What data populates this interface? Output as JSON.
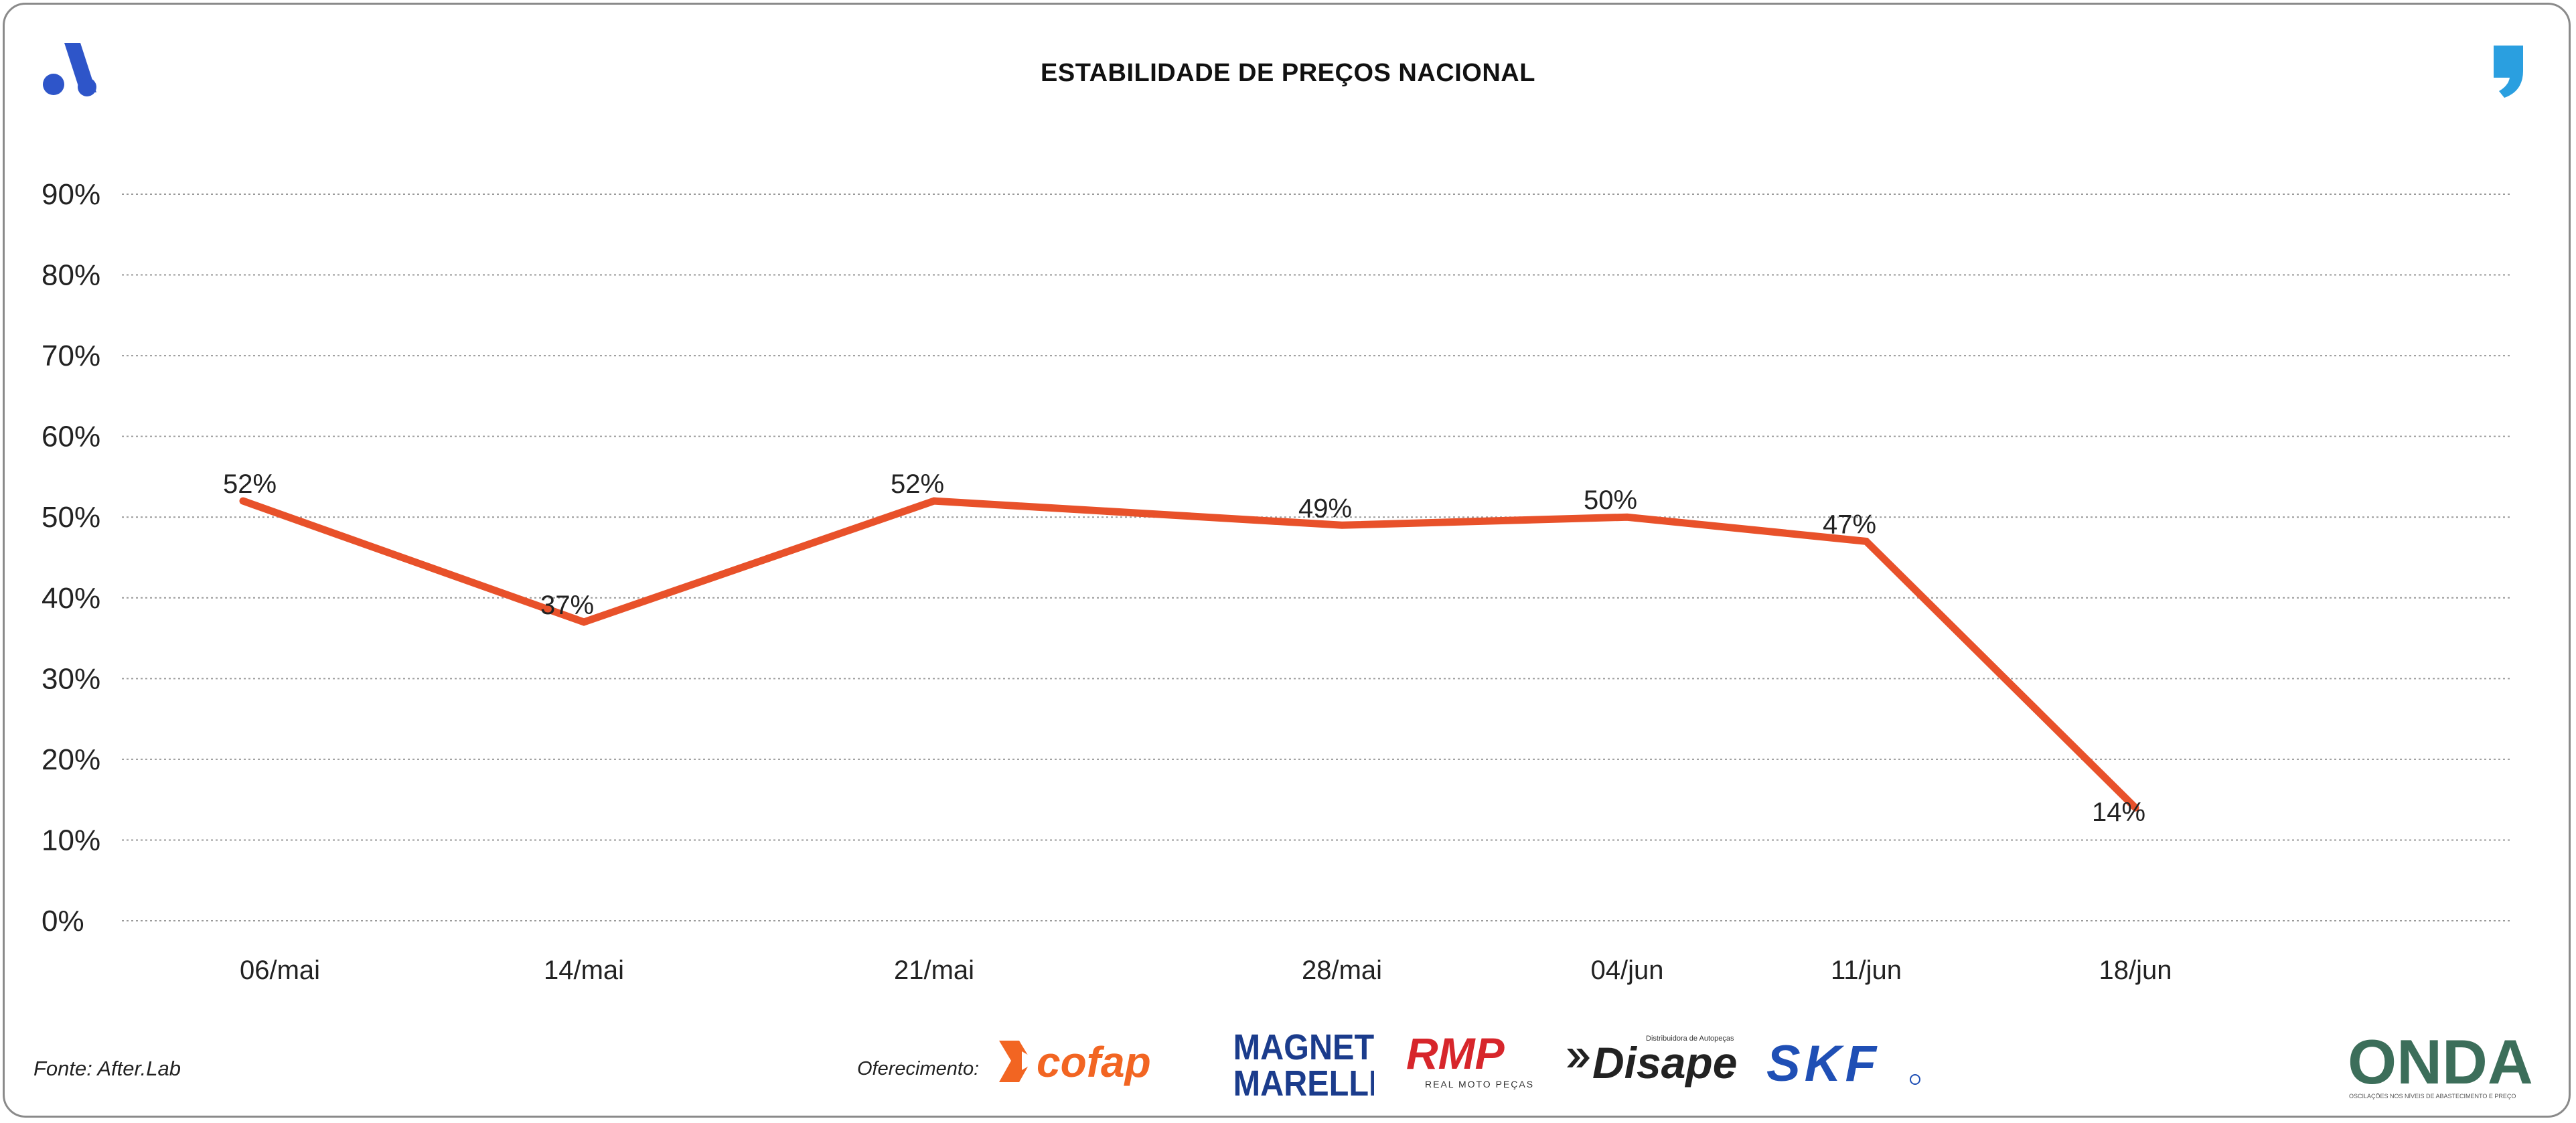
{
  "header": {
    "title": "ESTABILIDADE DE PREÇOS NACIONAL"
  },
  "brand": {
    "left_logo_icon": "afterlab-a-icon",
    "right_logo_icon": "comma-quote-icon"
  },
  "chart_data": {
    "type": "line",
    "title": "ESTABILIDADE DE PREÇOS NACIONAL",
    "xlabel": "",
    "ylabel": "",
    "categories": [
      "06/mai",
      "14/mai",
      "21/mai",
      "28/mai",
      "04/jun",
      "11/jun",
      "18/jun"
    ],
    "series": [
      {
        "name": "Estabilidade de preços",
        "values": [
          52,
          37,
          52,
          49,
          50,
          47,
          14
        ],
        "labels": [
          "52%",
          "37%",
          "52%",
          "49%",
          "50%",
          "47%",
          "14%"
        ],
        "color": "#E8512A"
      }
    ],
    "y_ticks": [
      "0%",
      "10%",
      "20%",
      "30%",
      "40%",
      "50%",
      "60%",
      "70%",
      "80%",
      "90%"
    ],
    "ylim": [
      0,
      90
    ],
    "grid": true,
    "legend": "none"
  },
  "footer": {
    "source": "Fonte: After.Lab",
    "sponsor_label": "Oferecimento:",
    "sponsors": {
      "cofap": "cofap",
      "magneti_1": "MAGNETI",
      "magneti_2": "MARELLI",
      "rmp": "RMP",
      "rmp_sub": "REAL MOTO PEÇAS",
      "disape": "Disape",
      "disape_sub": "Distribuidora de Autopeças",
      "skf": "SKF",
      "onda": "ONDA",
      "onda_sub": "OSCILAÇÕES NOS NÍVEIS DE ABASTECIMENTO E PREÇO"
    }
  },
  "colors": {
    "line": "#E8512A",
    "grid": "#9a9a9a",
    "brand_blue": "#2E55C9",
    "quote_blue": "#2A9FE0"
  }
}
